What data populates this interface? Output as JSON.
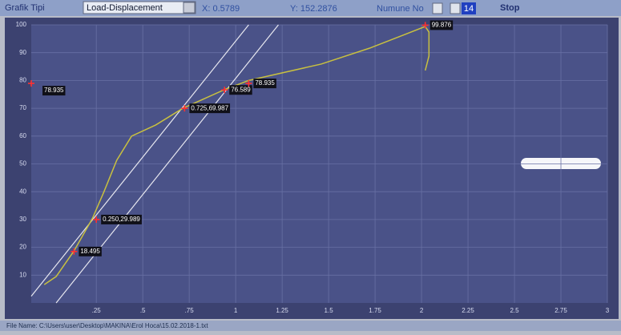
{
  "toolbar": {
    "chart_type_label": "Grafik Tipi",
    "chart_type_value": "Load-Displacement",
    "x_readout": "X: 0.5789",
    "y_readout": "Y: 152.2876",
    "sample_label": "Numune No",
    "sample_value": "14",
    "stop_button": "Stop"
  },
  "status_bar": {
    "file_name": "File Name: C:\\Users\\user\\Desktop\\MAKINA\\Erol Hoca\\15.02.2018-1.txt"
  },
  "chart_data": {
    "type": "line",
    "x": [
      -0.03,
      0.034,
      0.13,
      0.23,
      0.29,
      0.36,
      0.44,
      0.57,
      0.716,
      0.94,
      1.07,
      1.46,
      1.72,
      2.02,
      2.04,
      2.04,
      2.02
    ],
    "series": [
      {
        "color": "#c8c040",
        "values": [
          6.6,
          9.5,
          18.7,
          30.5,
          39.8,
          51.3,
          60,
          64,
          70,
          76.7,
          80,
          85.9,
          91.6,
          99.4,
          97.4,
          88.8,
          83.6
        ]
      }
    ],
    "offset_lines": [
      {
        "color": "#e8e8f0",
        "x": [
          0.034,
          1.23
        ],
        "values": [
          0,
          100
        ]
      },
      {
        "color": "#e8e8f0",
        "x": [
          -0.1,
          1.07
        ],
        "values": [
          2.4,
          100
        ]
      }
    ],
    "annotations": [
      {
        "x": -0.1,
        "y": 78.935,
        "label": "78.935"
      },
      {
        "x": 0.13,
        "y": 18.495,
        "label": "18.495"
      },
      {
        "x": 0.25,
        "y": 29.989,
        "label": "0.250,29.989"
      },
      {
        "x": 0.725,
        "y": 69.987,
        "label": "0.725,69.987"
      },
      {
        "x": 0.94,
        "y": 76.589,
        "label": "76.589"
      },
      {
        "x": 1.07,
        "y": 78.935,
        "label": "78.935"
      },
      {
        "x": 2.02,
        "y": 99.876,
        "label": "99.876"
      }
    ],
    "xlim": [
      -0.1,
      3
    ],
    "ylim": [
      0,
      100
    ],
    "xticks": [
      {
        "value": 0.25,
        "label": ".25"
      },
      {
        "value": 0.5,
        "label": ".5"
      },
      {
        "value": 0.75,
        "label": ".75"
      },
      1,
      1.25,
      1.5,
      1.75,
      2,
      2.25,
      2.5,
      2.75,
      3
    ],
    "yticks": [
      10,
      20,
      30,
      40,
      50,
      60,
      70,
      80,
      90,
      100
    ],
    "grid": true
  }
}
